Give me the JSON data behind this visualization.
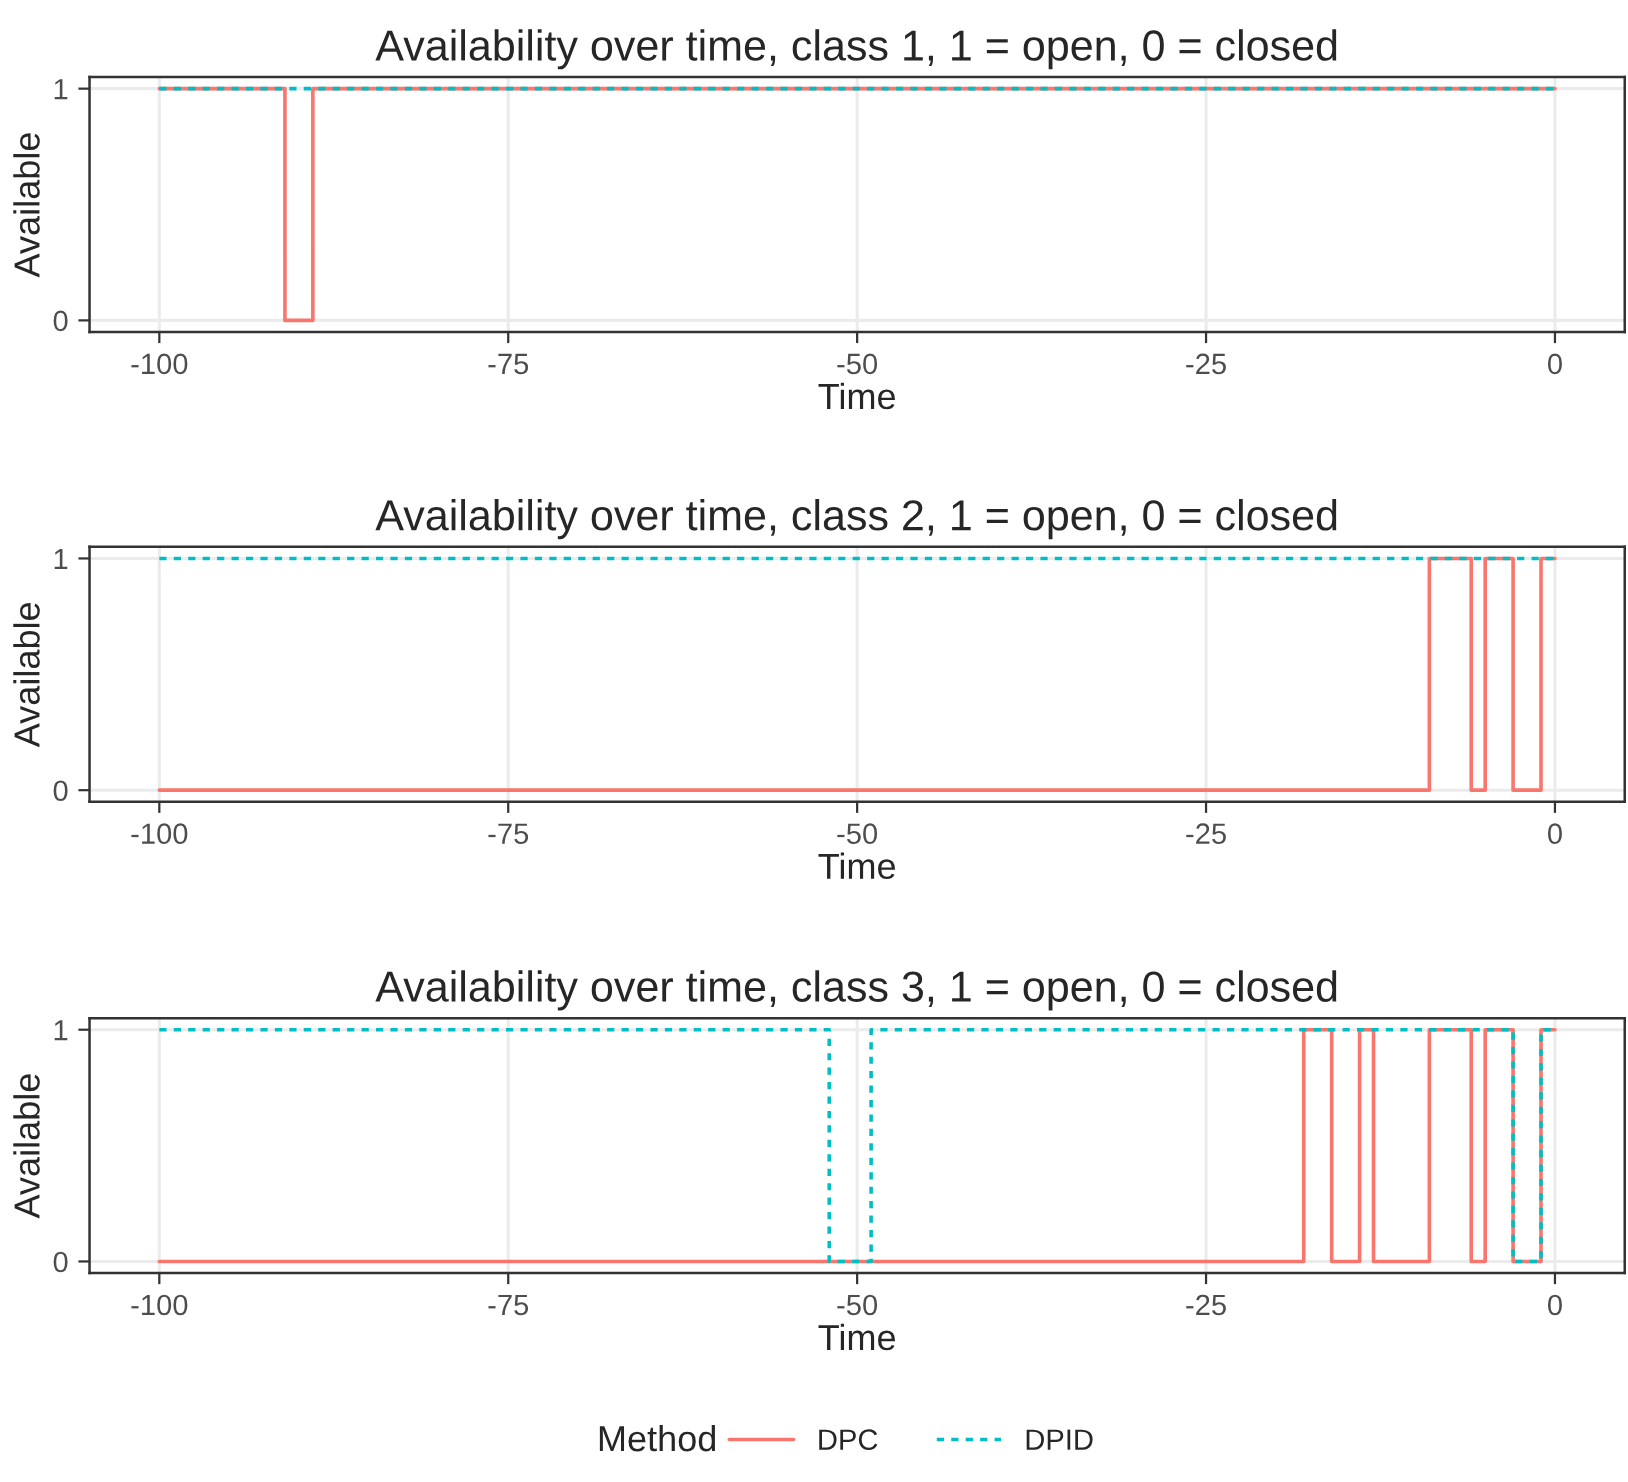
{
  "chart_data": [
    {
      "type": "step",
      "title": "Availability over time, class 1, 1 = open, 0 = closed",
      "xlabel": "Time",
      "ylabel": "Available",
      "xlim": [
        -105,
        5
      ],
      "xticks": [
        -100,
        -75,
        -50,
        -25,
        0
      ],
      "ylim": [
        -0.05,
        1.05
      ],
      "yticks": [
        0,
        1
      ],
      "grid": true,
      "legend": "bottom",
      "legend_title": "Method",
      "series": [
        {
          "name": "DPC",
          "color": "#f8766d",
          "line_style": "solid",
          "x": [
            -100,
            -91,
            -89,
            0
          ],
          "values": [
            1,
            0,
            1,
            1
          ]
        },
        {
          "name": "DPID",
          "color": "#00bfc4",
          "line_style": "dashed",
          "x": [
            -100,
            0
          ],
          "values": [
            1,
            1
          ]
        }
      ]
    },
    {
      "type": "step",
      "title": "Availability over time, class 2, 1 = open, 0 = closed",
      "xlabel": "Time",
      "ylabel": "Available",
      "xlim": [
        -105,
        5
      ],
      "xticks": [
        -100,
        -75,
        -50,
        -25,
        0
      ],
      "ylim": [
        -0.05,
        1.05
      ],
      "yticks": [
        0,
        1
      ],
      "grid": true,
      "legend": false,
      "series": [
        {
          "name": "DPC",
          "color": "#f8766d",
          "line_style": "solid",
          "x": [
            -100,
            -9,
            -6,
            -5,
            -3,
            -1,
            0
          ],
          "values": [
            0,
            1,
            0,
            1,
            0,
            1,
            1
          ]
        },
        {
          "name": "DPID",
          "color": "#00bfc4",
          "line_style": "dashed",
          "x": [
            -100,
            0
          ],
          "values": [
            1,
            1
          ]
        }
      ]
    },
    {
      "type": "step",
      "title": "Availability over time, class 3, 1 = open, 0 = closed",
      "xlabel": "Time",
      "ylabel": "Available",
      "xlim": [
        -105,
        5
      ],
      "xticks": [
        -100,
        -75,
        -50,
        -25,
        0
      ],
      "ylim": [
        -0.05,
        1.05
      ],
      "yticks": [
        0,
        1
      ],
      "grid": true,
      "legend": false,
      "series": [
        {
          "name": "DPC",
          "color": "#f8766d",
          "line_style": "solid",
          "x": [
            -100,
            -18,
            -16,
            -14,
            -13,
            -9,
            -6,
            -5,
            -3,
            -1,
            0
          ],
          "values": [
            0,
            1,
            0,
            1,
            0,
            1,
            0,
            1,
            0,
            1,
            1
          ]
        },
        {
          "name": "DPID",
          "color": "#00bfc4",
          "line_style": "dashed",
          "x": [
            -100,
            -52,
            -49,
            -3,
            -1,
            0
          ],
          "values": [
            1,
            0,
            1,
            0,
            1,
            1
          ]
        }
      ]
    }
  ]
}
